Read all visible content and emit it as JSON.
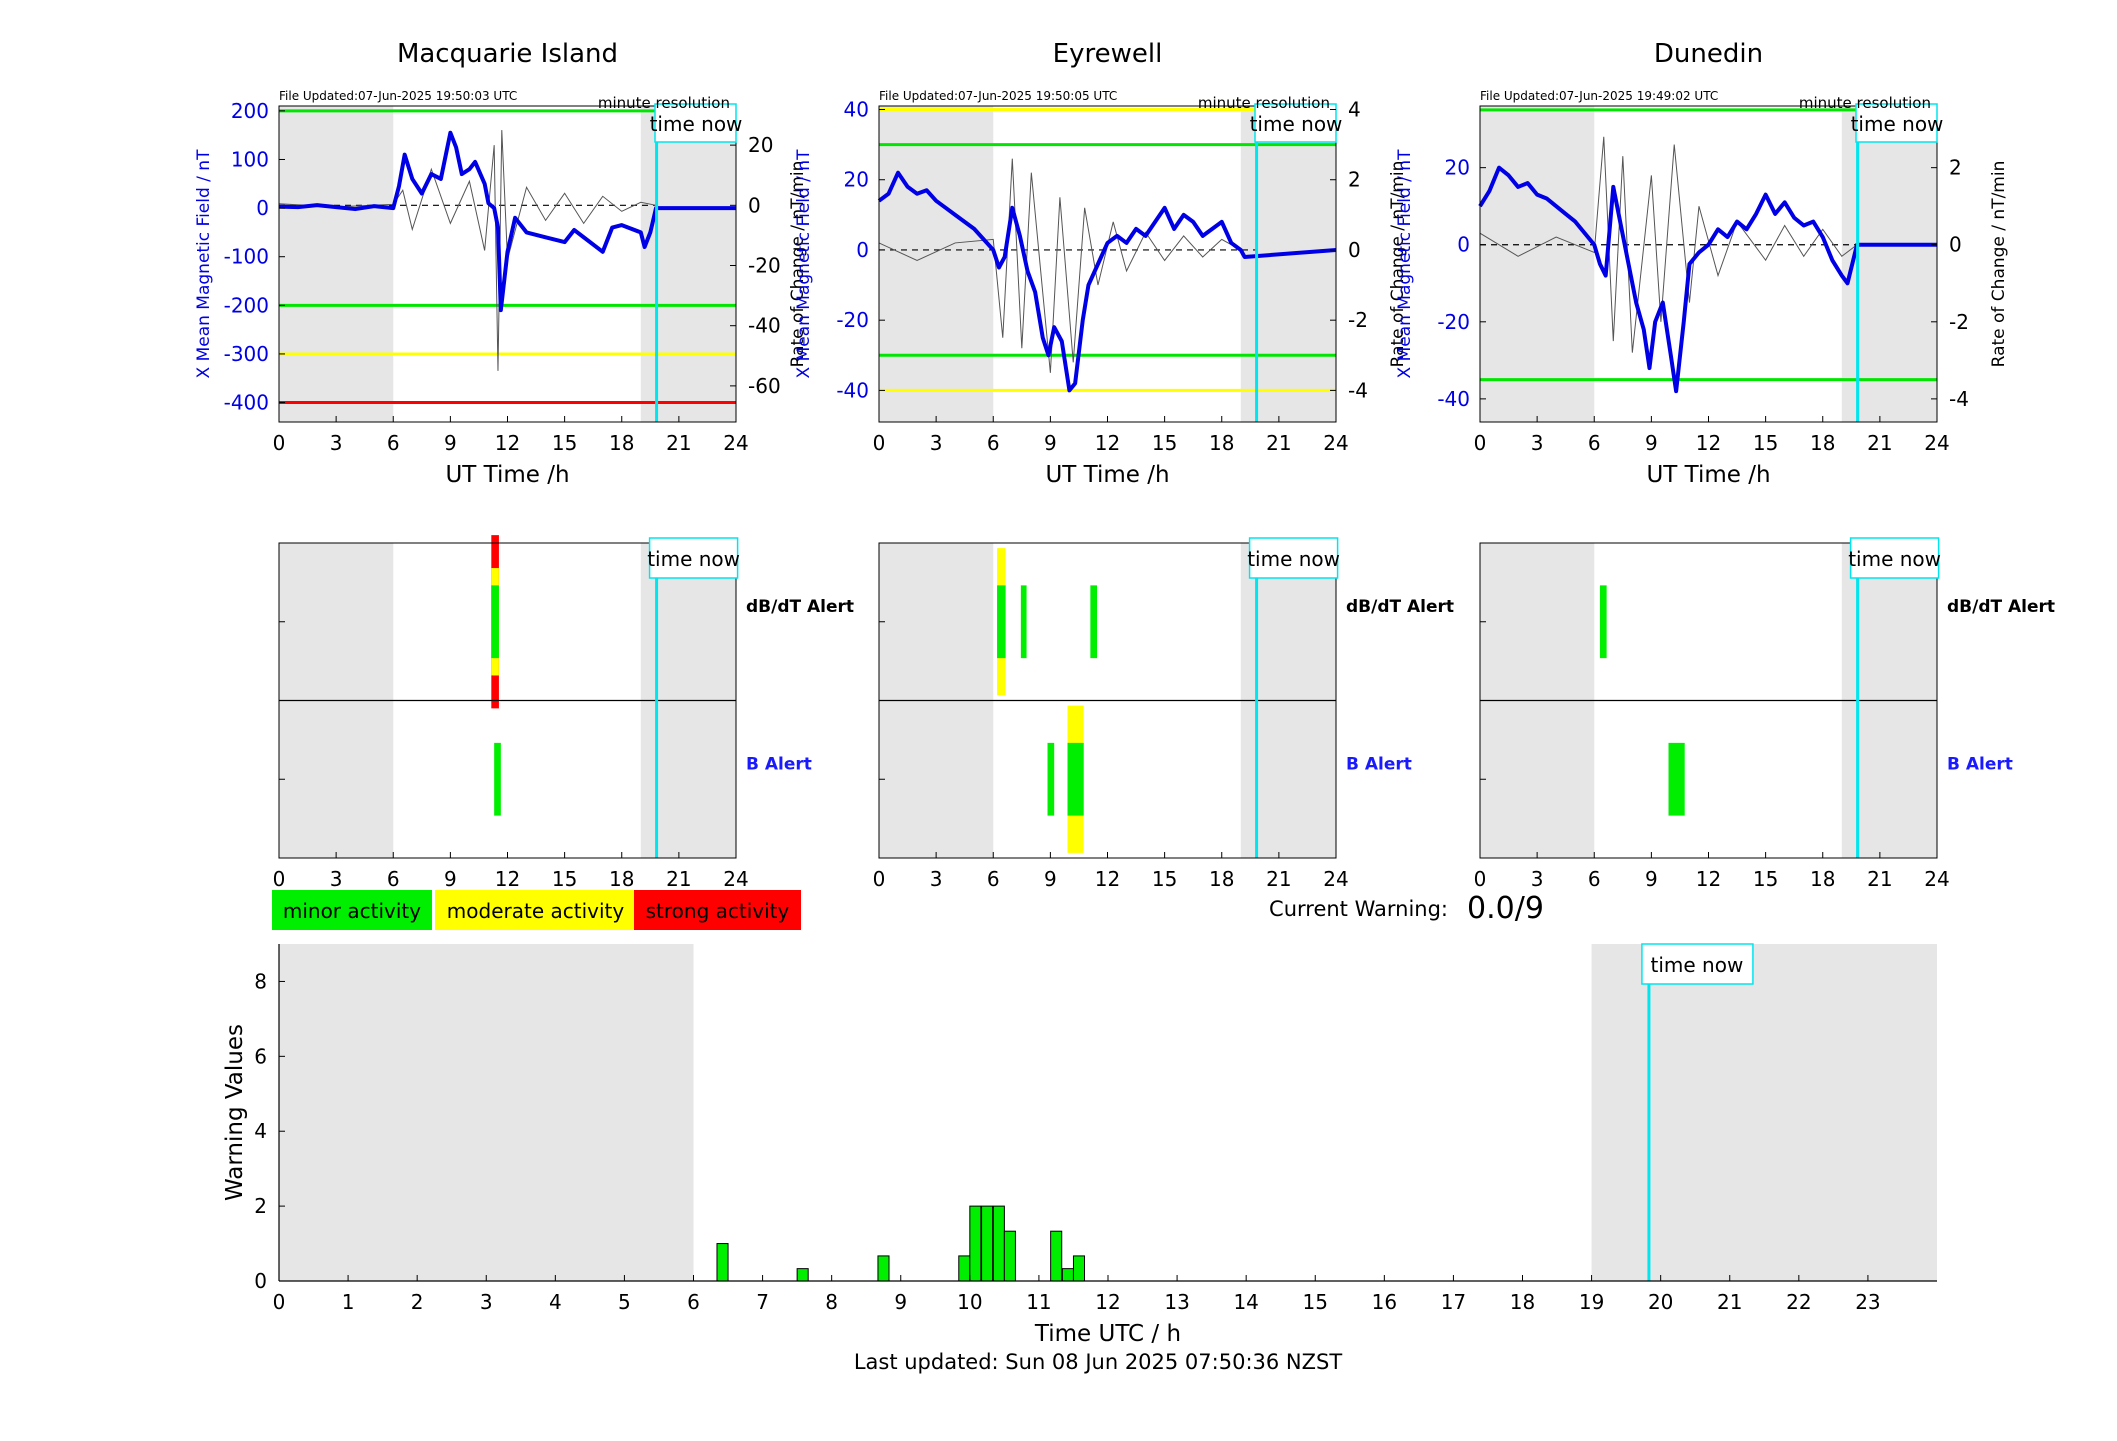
{
  "colors": {
    "x_line": "#0000e6",
    "rate_line": "#555555",
    "minor": "#00ee00",
    "moderate": "#ffff00",
    "strong": "#ff0000",
    "now": "#00e5ee",
    "night": "#e6e6e6"
  },
  "legend": {
    "minor": "minor activity",
    "moderate": "moderate activity",
    "strong": "strong activity"
  },
  "current_warning": {
    "label": "Current Warning:",
    "value": "0.0/9"
  },
  "footer": {
    "last_updated": "Last updated: Sun 08 Jun 2025 07:50:36 NZST"
  },
  "chart_data": [
    {
      "type": "line",
      "title": "Macquarie Island",
      "file_updated": "File Updated:07-Jun-2025 19:50:03 UTC",
      "resolution": "minute resolution",
      "now_label": "time now",
      "now_hour": 19.83,
      "xlabel": "UT Time /h",
      "ylabel": "X Mean Magnetic Field / nT",
      "y2label": "Rate of Change / nT/min",
      "xlim": [
        0,
        24
      ],
      "ylim": [
        -440,
        210
      ],
      "y2lim": [
        -72,
        33
      ],
      "xticks": [
        0,
        3,
        6,
        9,
        12,
        15,
        18,
        21,
        24
      ],
      "yticks": [
        -400,
        -300,
        -200,
        -100,
        0,
        100,
        200
      ],
      "y2ticks": [
        -60,
        -40,
        -20,
        0,
        20
      ],
      "night": [
        [
          0,
          6
        ],
        [
          19,
          24
        ]
      ],
      "thresholds": [
        {
          "y": 200,
          "color": "green"
        },
        {
          "y": -200,
          "color": "green"
        },
        {
          "y": -300,
          "color": "yellow"
        },
        {
          "y": -400,
          "color": "red"
        }
      ],
      "x_series": [
        [
          0,
          3
        ],
        [
          1,
          2
        ],
        [
          2,
          6
        ],
        [
          3,
          2
        ],
        [
          4,
          -2
        ],
        [
          5,
          4
        ],
        [
          6,
          0
        ],
        [
          6.3,
          45
        ],
        [
          6.6,
          110
        ],
        [
          7,
          60
        ],
        [
          7.5,
          30
        ],
        [
          8,
          70
        ],
        [
          8.5,
          60
        ],
        [
          9,
          155
        ],
        [
          9.3,
          125
        ],
        [
          9.6,
          70
        ],
        [
          10,
          80
        ],
        [
          10.3,
          95
        ],
        [
          10.8,
          50
        ],
        [
          11,
          10
        ],
        [
          11.3,
          0
        ],
        [
          11.5,
          -40
        ],
        [
          11.65,
          -210
        ],
        [
          12,
          -90
        ],
        [
          12.4,
          -20
        ],
        [
          13,
          -50
        ],
        [
          14,
          -60
        ],
        [
          15,
          -70
        ],
        [
          15.5,
          -45
        ],
        [
          16,
          -60
        ],
        [
          17,
          -90
        ],
        [
          17.5,
          -40
        ],
        [
          18,
          -35
        ],
        [
          19,
          -50
        ],
        [
          19.2,
          -80
        ],
        [
          19.5,
          -50
        ],
        [
          19.8,
          0
        ],
        [
          24,
          0
        ]
      ],
      "rate_series": [
        [
          0,
          0.5
        ],
        [
          3,
          -0.5
        ],
        [
          6,
          0.3
        ],
        [
          6.5,
          5
        ],
        [
          7,
          -8
        ],
        [
          8,
          12
        ],
        [
          9,
          -6
        ],
        [
          10,
          8
        ],
        [
          10.8,
          -15
        ],
        [
          11.3,
          20
        ],
        [
          11.5,
          -55
        ],
        [
          11.7,
          25
        ],
        [
          12,
          -18
        ],
        [
          13,
          6
        ],
        [
          14,
          -5
        ],
        [
          15,
          4
        ],
        [
          16,
          -6
        ],
        [
          17,
          3
        ],
        [
          18,
          -2
        ],
        [
          19,
          1
        ],
        [
          19.8,
          0
        ]
      ],
      "alerts": {
        "dbdt_label": "dB/dT Alert",
        "b_label": "B Alert",
        "dbdt": [
          {
            "x0": 11.15,
            "x1": 11.55,
            "level": "strong",
            "h": 1.0
          },
          {
            "x0": 11.15,
            "x1": 11.55,
            "level": "moderate",
            "h": 0.62
          },
          {
            "x0": 11.15,
            "x1": 11.55,
            "level": "minor",
            "h": 0.42
          }
        ],
        "b": [
          {
            "x0": 11.3,
            "x1": 11.65,
            "level": "minor",
            "h": 0.42
          }
        ]
      }
    },
    {
      "type": "line",
      "title": "Eyrewell",
      "file_updated": "File Updated:07-Jun-2025 19:50:05 UTC",
      "resolution": "minute resolution",
      "now_label": "time now",
      "now_hour": 19.83,
      "xlabel": "UT Time /h",
      "ylabel": "X Mean Magnetic Field / nT",
      "y2label": "Rate of Change / nT/min",
      "xlim": [
        0,
        24
      ],
      "ylim": [
        -49,
        41
      ],
      "y2lim": [
        -4.9,
        4.1
      ],
      "xticks": [
        0,
        3,
        6,
        9,
        12,
        15,
        18,
        21,
        24
      ],
      "yticks": [
        -40,
        -20,
        0,
        20,
        40
      ],
      "y2ticks": [
        -4,
        -2,
        0,
        2,
        4
      ],
      "night": [
        [
          0,
          6
        ],
        [
          19,
          24
        ]
      ],
      "thresholds": [
        {
          "y": 40,
          "color": "yellow"
        },
        {
          "y": 30,
          "color": "green"
        },
        {
          "y": -30,
          "color": "green"
        },
        {
          "y": -40,
          "color": "yellow"
        }
      ],
      "x_series": [
        [
          0,
          14
        ],
        [
          0.5,
          16
        ],
        [
          1,
          22
        ],
        [
          1.5,
          18
        ],
        [
          2,
          16
        ],
        [
          2.5,
          17
        ],
        [
          3,
          14
        ],
        [
          3.5,
          12
        ],
        [
          4,
          10
        ],
        [
          4.5,
          8
        ],
        [
          5,
          6
        ],
        [
          6,
          0
        ],
        [
          6.3,
          -5
        ],
        [
          6.6,
          -2
        ],
        [
          7,
          12
        ],
        [
          7.4,
          4
        ],
        [
          7.8,
          -6
        ],
        [
          8.2,
          -12
        ],
        [
          8.6,
          -25
        ],
        [
          8.9,
          -30
        ],
        [
          9.2,
          -22
        ],
        [
          9.6,
          -26
        ],
        [
          10,
          -40
        ],
        [
          10.3,
          -38
        ],
        [
          10.7,
          -20
        ],
        [
          11,
          -10
        ],
        [
          11.5,
          -4
        ],
        [
          12,
          2
        ],
        [
          12.5,
          4
        ],
        [
          13,
          2
        ],
        [
          13.5,
          6
        ],
        [
          14,
          4
        ],
        [
          14.5,
          8
        ],
        [
          15,
          12
        ],
        [
          15.5,
          6
        ],
        [
          16,
          10
        ],
        [
          16.5,
          8
        ],
        [
          17,
          4
        ],
        [
          17.5,
          6
        ],
        [
          18,
          8
        ],
        [
          18.5,
          2
        ],
        [
          19,
          0
        ],
        [
          19.2,
          -2
        ],
        [
          24,
          0
        ]
      ],
      "rate_series": [
        [
          0,
          0.2
        ],
        [
          2,
          -0.3
        ],
        [
          4,
          0.2
        ],
        [
          6,
          0.3
        ],
        [
          6.5,
          -2.5
        ],
        [
          7,
          2.6
        ],
        [
          7.5,
          -2.8
        ],
        [
          8,
          2.2
        ],
        [
          9,
          -3.5
        ],
        [
          9.5,
          1.5
        ],
        [
          10.2,
          -3.2
        ],
        [
          10.8,
          1.2
        ],
        [
          11.5,
          -1
        ],
        [
          12.3,
          0.8
        ],
        [
          13,
          -0.6
        ],
        [
          14,
          0.5
        ],
        [
          15,
          -0.3
        ],
        [
          16,
          0.4
        ],
        [
          17,
          -0.2
        ],
        [
          18,
          0.3
        ],
        [
          19,
          0
        ]
      ],
      "alerts": {
        "dbdt_label": "dB/dT Alert",
        "b_label": "B Alert",
        "dbdt": [
          {
            "x0": 6.2,
            "x1": 6.65,
            "level": "moderate",
            "h": 0.85
          },
          {
            "x0": 6.2,
            "x1": 6.65,
            "level": "minor",
            "h": 0.42
          },
          {
            "x0": 7.45,
            "x1": 7.75,
            "level": "minor",
            "h": 0.42
          },
          {
            "x0": 11.1,
            "x1": 11.45,
            "level": "minor",
            "h": 0.42
          }
        ],
        "b": [
          {
            "x0": 8.85,
            "x1": 9.2,
            "level": "minor",
            "h": 0.42
          },
          {
            "x0": 9.9,
            "x1": 10.75,
            "level": "moderate",
            "h": 0.85
          },
          {
            "x0": 9.9,
            "x1": 10.75,
            "level": "minor",
            "h": 0.42
          }
        ]
      }
    },
    {
      "type": "line",
      "title": "Dunedin",
      "file_updated": "File Updated:07-Jun-2025 19:49:02 UTC",
      "resolution": "minute resolution",
      "now_label": "time now",
      "now_hour": 19.83,
      "xlabel": "UT Time /h",
      "ylabel": "X Mean Magnetic Field / nT",
      "y2label": "Rate of Change / nT/min",
      "xlim": [
        0,
        24
      ],
      "ylim": [
        -46,
        36
      ],
      "y2lim": [
        -4.6,
        3.6
      ],
      "xticks": [
        0,
        3,
        6,
        9,
        12,
        15,
        18,
        21,
        24
      ],
      "yticks": [
        -40,
        -20,
        0,
        20
      ],
      "y2ticks": [
        -4,
        -2,
        0,
        2
      ],
      "night": [
        [
          0,
          6
        ],
        [
          19,
          24
        ]
      ],
      "thresholds": [
        {
          "y": 35,
          "color": "green"
        },
        {
          "y": -35,
          "color": "green"
        }
      ],
      "x_series": [
        [
          0,
          10
        ],
        [
          0.5,
          14
        ],
        [
          1,
          20
        ],
        [
          1.5,
          18
        ],
        [
          2,
          15
        ],
        [
          2.5,
          16
        ],
        [
          3,
          13
        ],
        [
          3.5,
          12
        ],
        [
          4,
          10
        ],
        [
          4.5,
          8
        ],
        [
          5,
          6
        ],
        [
          6,
          0
        ],
        [
          6.3,
          -5
        ],
        [
          6.6,
          -8
        ],
        [
          7,
          15
        ],
        [
          7.4,
          5
        ],
        [
          7.8,
          -5
        ],
        [
          8.2,
          -15
        ],
        [
          8.6,
          -22
        ],
        [
          8.9,
          -32
        ],
        [
          9.2,
          -20
        ],
        [
          9.6,
          -15
        ],
        [
          10,
          -28
        ],
        [
          10.3,
          -38
        ],
        [
          10.7,
          -20
        ],
        [
          11,
          -5
        ],
        [
          11.5,
          -2
        ],
        [
          12,
          0
        ],
        [
          12.5,
          4
        ],
        [
          13,
          2
        ],
        [
          13.5,
          6
        ],
        [
          14,
          4
        ],
        [
          14.5,
          8
        ],
        [
          15,
          13
        ],
        [
          15.5,
          8
        ],
        [
          16,
          11
        ],
        [
          16.5,
          7
        ],
        [
          17,
          5
        ],
        [
          17.5,
          6
        ],
        [
          18,
          2
        ],
        [
          18.5,
          -4
        ],
        [
          19,
          -8
        ],
        [
          19.3,
          -10
        ],
        [
          19.8,
          0
        ],
        [
          24,
          0
        ]
      ],
      "rate_series": [
        [
          0,
          0.3
        ],
        [
          2,
          -0.3
        ],
        [
          4,
          0.2
        ],
        [
          6,
          -0.2
        ],
        [
          6.5,
          2.8
        ],
        [
          7,
          -2.5
        ],
        [
          7.5,
          2.3
        ],
        [
          8,
          -2.8
        ],
        [
          9,
          1.8
        ],
        [
          9.5,
          -2
        ],
        [
          10.2,
          2.6
        ],
        [
          11,
          -1.5
        ],
        [
          11.5,
          1
        ],
        [
          12.5,
          -0.8
        ],
        [
          13.5,
          0.6
        ],
        [
          15,
          -0.4
        ],
        [
          16,
          0.5
        ],
        [
          17,
          -0.3
        ],
        [
          18,
          0.4
        ],
        [
          19,
          -0.3
        ],
        [
          19.8,
          0
        ]
      ],
      "alerts": {
        "dbdt_label": "dB/dT Alert",
        "b_label": "B Alert",
        "dbdt": [
          {
            "x0": 6.3,
            "x1": 6.65,
            "level": "minor",
            "h": 0.42
          }
        ],
        "b": [
          {
            "x0": 9.9,
            "x1": 10.75,
            "level": "minor",
            "h": 0.42
          }
        ]
      }
    },
    {
      "type": "bar",
      "title": "",
      "now_label": "time now",
      "now_hour": 19.83,
      "xlabel": "Time UTC / h",
      "ylabel": "Warning Values",
      "xlim": [
        0,
        24
      ],
      "ylim": [
        0,
        9
      ],
      "xticks": [
        0,
        1,
        2,
        3,
        4,
        5,
        6,
        7,
        8,
        9,
        10,
        11,
        12,
        13,
        14,
        15,
        16,
        17,
        18,
        19,
        20,
        21,
        22,
        23
      ],
      "yticks": [
        0,
        2,
        4,
        6,
        8
      ],
      "night": [
        [
          0,
          6
        ],
        [
          19,
          24
        ]
      ],
      "bars": [
        {
          "x": 6.42,
          "v": 1
        },
        {
          "x": 7.58,
          "v": 0.33
        },
        {
          "x": 8.75,
          "v": 0.67
        },
        {
          "x": 9.92,
          "v": 0.67
        },
        {
          "x": 10.08,
          "v": 2
        },
        {
          "x": 10.25,
          "v": 2
        },
        {
          "x": 10.42,
          "v": 2
        },
        {
          "x": 10.58,
          "v": 1.33
        },
        {
          "x": 11.25,
          "v": 1.33
        },
        {
          "x": 11.42,
          "v": 0.33
        },
        {
          "x": 11.58,
          "v": 0.67
        }
      ],
      "bar_width": 0.16
    }
  ]
}
